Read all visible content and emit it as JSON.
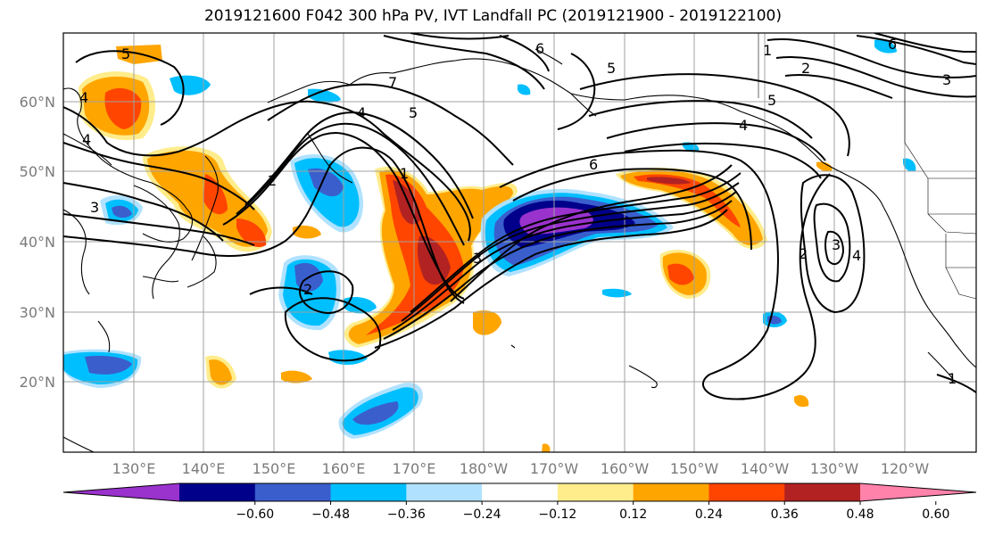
{
  "title": "2019121600 F042 300 hPa PV, IVT Landfall PC (2019121900 - 2019122100)",
  "lat_labels": [
    "60°N",
    "50°N",
    "40°N",
    "30°N",
    "20°N"
  ],
  "lon_labels": [
    "130°E",
    "140°E",
    "150°E",
    "160°E",
    "170°E",
    "180°W",
    "170°W",
    "160°W",
    "150°W",
    "140°W",
    "130°W",
    "120°W"
  ],
  "colorbar": {
    "ticks": [
      "−0.60",
      "−0.48",
      "−0.36",
      "−0.24",
      "−0.12",
      "0.12",
      "0.24",
      "0.36",
      "0.48",
      "0.60"
    ],
    "colors": [
      "#9a32cd",
      "#00008b",
      "#3a5fcd",
      "#00bfff",
      "#b0e2ff",
      "#ffffff",
      "#ffec8b",
      "#ffa500",
      "#ff4500",
      "#b22222",
      "#ff82ab"
    ]
  },
  "contour_labels": [
    "5",
    "4",
    "4",
    "3",
    "2",
    "1",
    "2",
    "3",
    "4",
    "5",
    "6",
    "7",
    "6",
    "5",
    "4",
    "3",
    "2",
    "1",
    "1",
    "2",
    "3",
    "4",
    "5",
    "6"
  ],
  "colors": {
    "grid": "#a0a0a0",
    "neg_strong": "#00008b",
    "pos_strong": "#b22222"
  }
}
